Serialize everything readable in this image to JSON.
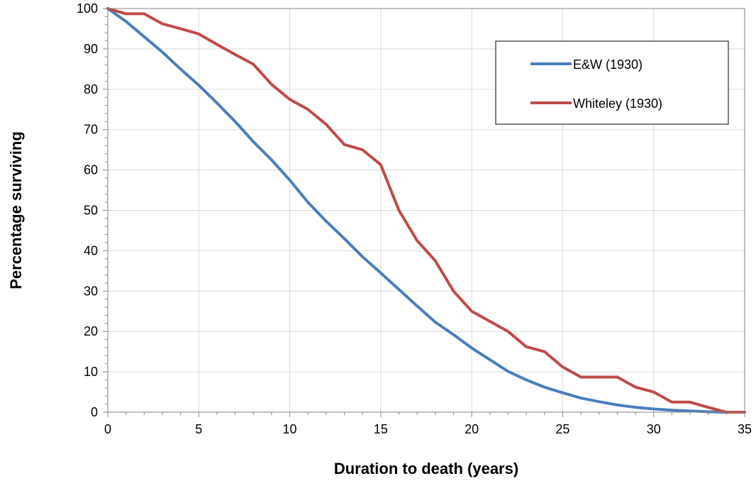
{
  "chart_data": {
    "type": "line",
    "xlabel": "Duration to death (years)",
    "ylabel": "Percentage surviving",
    "xlim": [
      0,
      35
    ],
    "ylim": [
      0,
      100
    ],
    "x_ticks": [
      0,
      5,
      10,
      15,
      20,
      25,
      30,
      35
    ],
    "y_ticks": [
      0,
      10,
      20,
      30,
      40,
      50,
      60,
      70,
      80,
      90,
      100
    ],
    "grid": true,
    "legend_position": "top-right",
    "series": [
      {
        "name": "E&W (1930)",
        "color": "#4a7ebb",
        "x": [
          0,
          1,
          2,
          3,
          4,
          5,
          6,
          7,
          8,
          9,
          10,
          11,
          12,
          13,
          14,
          15,
          16,
          17,
          18,
          19,
          20,
          21,
          22,
          23,
          24,
          25,
          26,
          27,
          28,
          29,
          30,
          31,
          32,
          33,
          34,
          35
        ],
        "values": [
          100,
          96.8,
          93,
          89.2,
          85,
          81,
          76.6,
          72,
          67,
          62.5,
          57.5,
          52,
          47.3,
          43,
          38.5,
          34.5,
          30.4,
          26.3,
          22.3,
          19.2,
          15.9,
          13,
          10.1,
          8,
          6.2,
          4.8,
          3.5,
          2.6,
          1.8,
          1.2,
          0.8,
          0.5,
          0.3,
          0.1,
          0,
          0
        ]
      },
      {
        "name": "Whiteley (1930)",
        "color": "#be4b48",
        "x": [
          0,
          1,
          2,
          3,
          4,
          5,
          6,
          7,
          8,
          9,
          10,
          11,
          12,
          13,
          14,
          15,
          16,
          17,
          18,
          19,
          20,
          21,
          22,
          23,
          24,
          25,
          26,
          27,
          28,
          29,
          30,
          31,
          32,
          33,
          34,
          35
        ],
        "values": [
          100,
          98.7,
          98.7,
          96.2,
          95,
          93.7,
          91.1,
          88.6,
          86.2,
          81.2,
          77.5,
          75,
          71.3,
          66.3,
          65,
          61.3,
          50,
          42.5,
          37.5,
          30,
          25,
          22.5,
          20,
          16.2,
          15,
          11.2,
          8.7,
          8.7,
          8.7,
          6.2,
          5,
          2.5,
          2.5,
          1.2,
          0,
          0
        ]
      }
    ]
  }
}
